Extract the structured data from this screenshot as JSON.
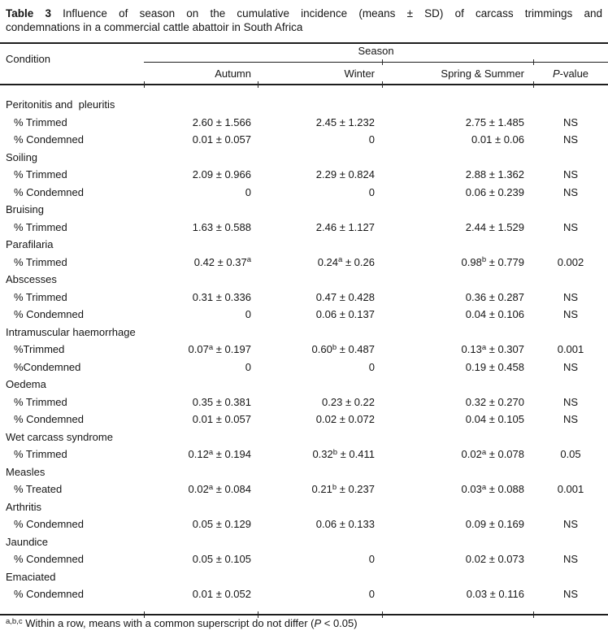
{
  "title": {
    "prefix": "Table 3",
    "line1_rest": "Influence of season on the cumulative incidence (means ± SD) of carcass trimmings and",
    "line2": "condemnations in a commercial cattle abattoir in South Africa"
  },
  "table": {
    "condition_header": "Condition",
    "season_header": "Season",
    "columns": [
      "Autumn",
      "Winter",
      "Spring & Summer"
    ],
    "p_value_header": {
      "italic": "P",
      "rest": "-value"
    },
    "rows": [
      {
        "type": "group",
        "label": "Peritonitis and  pleuritis"
      },
      {
        "type": "data",
        "label": "% Trimmed",
        "autumn": "2.60 ± 1.566",
        "winter": "2.45 ± 1.232",
        "spring_summer": "2.75 ± 1.485",
        "p": "NS"
      },
      {
        "type": "data",
        "label": "% Condemned",
        "autumn": "0.01 ± 0.057",
        "winter": "0",
        "spring_summer": "0.01 ± 0.06",
        "p": "NS"
      },
      {
        "type": "group",
        "label": "Soiling"
      },
      {
        "type": "data",
        "label": "% Trimmed",
        "autumn": "2.09 ± 0.966",
        "winter": "2.29 ± 0.824",
        "spring_summer": "2.88 ± 1.362",
        "p": "NS"
      },
      {
        "type": "data",
        "label": "% Condemned",
        "autumn": "0",
        "winter": "0",
        "spring_summer": "0.06 ± 0.239",
        "p": "NS"
      },
      {
        "type": "group",
        "label": "Bruising"
      },
      {
        "type": "data",
        "label": "% Trimmed",
        "autumn": "1.63 ± 0.588",
        "winter": "2.46 ± 1.127",
        "spring_summer": "2.44 ± 1.529",
        "p": "NS"
      },
      {
        "type": "group",
        "label": "Parafilaria"
      },
      {
        "type": "data",
        "label": "% Trimmed",
        "autumn": "0.42 ± 0.37^a",
        "winter": "0.24^a ± 0.26",
        "spring_summer": "0.98^b ± 0.779",
        "p": "0.002"
      },
      {
        "type": "group",
        "label": "Abscesses"
      },
      {
        "type": "data",
        "label": "% Trimmed",
        "autumn": "0.31 ± 0.336",
        "winter": "0.47 ± 0.428",
        "spring_summer": "0.36 ± 0.287",
        "p": "NS"
      },
      {
        "type": "data",
        "label": "% Condemned",
        "autumn": "0",
        "winter": "0.06 ± 0.137",
        "spring_summer": "0.04 ± 0.106",
        "p": "NS"
      },
      {
        "type": "group",
        "label": "Intramuscular haemorrhage"
      },
      {
        "type": "data",
        "label": "%Trimmed",
        "autumn": "0.07^a ± 0.197",
        "winter": "0.60^b ± 0.487",
        "spring_summer": "0.13^a ± 0.307",
        "p": "0.001"
      },
      {
        "type": "data",
        "label": "%Condemned",
        "autumn": "0",
        "winter": "0",
        "spring_summer": "0.19 ± 0.458",
        "p": "NS"
      },
      {
        "type": "group",
        "label": "Oedema"
      },
      {
        "type": "data",
        "label": "% Trimmed",
        "autumn": "0.35 ± 0.381",
        "winter": "0.23 ± 0.22",
        "spring_summer": "0.32 ± 0.270",
        "p": "NS"
      },
      {
        "type": "data",
        "label": "% Condemned",
        "autumn": "0.01 ± 0.057",
        "winter": "0.02 ± 0.072",
        "spring_summer": "0.04 ± 0.105",
        "p": "NS"
      },
      {
        "type": "group",
        "label": "Wet carcass syndrome"
      },
      {
        "type": "data",
        "label": "% Trimmed",
        "autumn": "0.12^a ± 0.194",
        "winter": "0.32^b ± 0.411",
        "spring_summer": "0.02^a ± 0.078",
        "p": "0.05"
      },
      {
        "type": "group",
        "label": "Measles"
      },
      {
        "type": "data",
        "label": "% Treated",
        "autumn": "0.02^a ± 0.084",
        "winter": "0.21^b ± 0.237",
        "spring_summer": "0.03^a ± 0.088",
        "p": "0.001"
      },
      {
        "type": "group",
        "label": "Arthritis"
      },
      {
        "type": "data",
        "label": "% Condemned",
        "autumn": "0.05 ± 0.129",
        "winter": "0.06 ± 0.133",
        "spring_summer": "0.09 ± 0.169",
        "p": "NS"
      },
      {
        "type": "group",
        "label": "Jaundice"
      },
      {
        "type": "data",
        "label": "% Condemned",
        "autumn": "0.05 ± 0.105",
        "winter": "0",
        "spring_summer": "0.02 ± 0.073",
        "p": "NS"
      },
      {
        "type": "group",
        "label": "Emaciated"
      },
      {
        "type": "data",
        "label": "% Condemned",
        "autumn": "0.01 ± 0.052",
        "winter": "0",
        "spring_summer": "0.03 ± 0.116",
        "p": "NS"
      }
    ]
  },
  "footnote": {
    "superscript": "a,b,c",
    "text": " Within a row, means with a common superscript do not differ (",
    "italic": "P",
    "text_end": " < 0.05)"
  }
}
